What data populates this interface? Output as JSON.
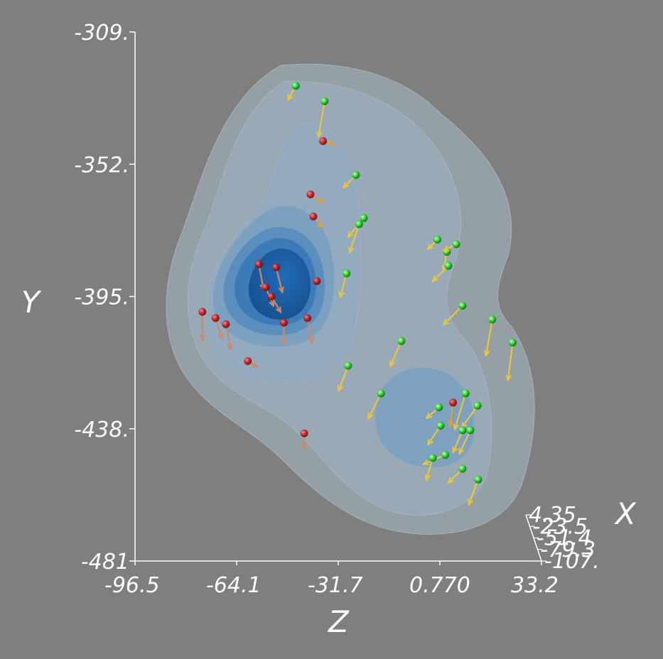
{
  "chart_data": {
    "type": "scatter",
    "subtype": "3d-isosurface-with-vector-glyphs",
    "title": "",
    "xlabel": "Z",
    "ylabel": "Y",
    "zlabel": "X",
    "x_axis": {
      "label": "Z",
      "range": [
        -96.5,
        33.2
      ],
      "ticks": [
        "-96.5",
        "-64.1",
        "-31.7",
        "0.770",
        "33.2"
      ]
    },
    "y_axis": {
      "label": "Y",
      "range": [
        -481,
        -309
      ],
      "ticks": [
        "-309.",
        "-352.",
        "-395.",
        "-438.",
        "-481"
      ]
    },
    "depth_axis": {
      "label": "X",
      "range": [
        -107,
        4.35
      ],
      "ticks": [
        "4.35",
        "-23.5",
        "-51.4",
        "-79.3",
        "-107."
      ]
    },
    "grid": false,
    "legend": "none",
    "isosurface_levels": 7,
    "colors": {
      "background": "#7f7f7f",
      "axes": "#ffffff",
      "isosurface_outer": "#9fb3c3",
      "isosurface_inner": "#1a5fa8",
      "point_high": "#33dd33",
      "point_low": "#cc1111"
    },
    "points": [
      {
        "z": -45.2,
        "y": -326.5,
        "dir": [
          -0.5,
          0.9
        ],
        "v": 0.75
      },
      {
        "z": -36.0,
        "y": -331.5,
        "dir": [
          -0.4,
          2.3
        ],
        "v": 0.85
      },
      {
        "z": -36.5,
        "y": -344.5,
        "dir": [
          0.8,
          0.2
        ],
        "v": 0.45
      },
      {
        "z": -40.5,
        "y": -361.8,
        "dir": [
          0.8,
          0.5
        ],
        "v": 0.35
      },
      {
        "z": -26.0,
        "y": -355.5,
        "dir": [
          -0.8,
          0.8
        ],
        "v": 0.6
      },
      {
        "z": -39.6,
        "y": -369.0,
        "dir": [
          0.6,
          0.7
        ],
        "v": 0.35
      },
      {
        "z": -23.5,
        "y": -369.5,
        "dir": [
          -1.0,
          1.2
        ],
        "v": 0.65
      },
      {
        "z": -25.0,
        "y": -371.5,
        "dir": [
          -0.6,
          1.8
        ],
        "v": 0.6
      },
      {
        "z": -38.5,
        "y": -390.0,
        "dir": [
          0.0,
          0.0
        ],
        "v": 0.3
      },
      {
        "z": -57.0,
        "y": -384.5,
        "dir": [
          0.3,
          1.6
        ],
        "v": 0.2
      },
      {
        "z": -51.5,
        "y": -385.5,
        "dir": [
          0.4,
          1.6
        ],
        "v": 0.25
      },
      {
        "z": -29.0,
        "y": -387.5,
        "dir": [
          -0.4,
          1.5
        ],
        "v": 0.7
      },
      {
        "z": -54.8,
        "y": -392.0,
        "dir": [
          0.5,
          1.2
        ],
        "v": 0.25
      },
      {
        "z": -53.0,
        "y": -395.0,
        "dir": [
          0.6,
          1.0
        ],
        "v": 0.3
      },
      {
        "z": -75.0,
        "y": -400.0,
        "dir": [
          0.0,
          1.8
        ],
        "v": 0.0
      },
      {
        "z": -70.8,
        "y": -402.0,
        "dir": [
          0.4,
          1.3
        ],
        "v": 0.1
      },
      {
        "z": -67.5,
        "y": -404.0,
        "dir": [
          0.3,
          1.6
        ],
        "v": 0.1
      },
      {
        "z": -49.0,
        "y": -403.5,
        "dir": [
          0.0,
          1.4
        ],
        "v": 0.3
      },
      {
        "z": -41.5,
        "y": -402.0,
        "dir": [
          0.3,
          1.6
        ],
        "v": 0.3
      },
      {
        "z": -60.5,
        "y": -416.0,
        "dir": [
          0.6,
          0.4
        ],
        "v": 0.15
      },
      {
        "z": -28.5,
        "y": -417.5,
        "dir": [
          -0.6,
          1.6
        ],
        "v": 0.75
      },
      {
        "z": -11.5,
        "y": -409.5,
        "dir": [
          -0.7,
          1.6
        ],
        "v": 0.65
      },
      {
        "z": 3.0,
        "y": -380.5,
        "dir": [
          -0.2,
          1.2
        ],
        "v": 0.75
      },
      {
        "z": 0.0,
        "y": -376.5,
        "dir": [
          -0.6,
          0.6
        ],
        "v": 0.8
      },
      {
        "z": 6.0,
        "y": -378.0,
        "dir": [
          -0.8,
          0.4
        ],
        "v": 0.8
      },
      {
        "z": 3.5,
        "y": -385.0,
        "dir": [
          -1.0,
          1.0
        ],
        "v": 0.9
      },
      {
        "z": 8.0,
        "y": -398.0,
        "dir": [
          -1.2,
          1.2
        ],
        "v": 0.75
      },
      {
        "z": 17.5,
        "y": -402.5,
        "dir": [
          -0.4,
          2.3
        ],
        "v": 0.85
      },
      {
        "z": 24.0,
        "y": -410.0,
        "dir": [
          -0.3,
          2.4
        ],
        "v": 0.9
      },
      {
        "z": -18.0,
        "y": -426.5,
        "dir": [
          -0.8,
          1.6
        ],
        "v": 0.7
      },
      {
        "z": 0.5,
        "y": -431.0,
        "dir": [
          -0.8,
          0.7
        ],
        "v": 0.7
      },
      {
        "z": 9.0,
        "y": -426.5,
        "dir": [
          -0.7,
          2.3
        ],
        "v": 0.75
      },
      {
        "z": 12.8,
        "y": -430.5,
        "dir": [
          -1.0,
          1.4
        ],
        "v": 0.85
      },
      {
        "z": 5.0,
        "y": -429.5,
        "dir": [
          -0.2,
          1.5
        ],
        "v": 0.4
      },
      {
        "z": 1.0,
        "y": -437.0,
        "dir": [
          -0.8,
          1.2
        ],
        "v": 0.7
      },
      {
        "z": 8.0,
        "y": -438.5,
        "dir": [
          -0.6,
          1.4
        ],
        "v": 0.75
      },
      {
        "z": 10.5,
        "y": -438.5,
        "dir": [
          -0.7,
          1.5
        ],
        "v": 0.7
      },
      {
        "z": 2.5,
        "y": -446.5,
        "dir": [
          -1.4,
          0.6
        ],
        "v": 0.8
      },
      {
        "z": -1.5,
        "y": -447.5,
        "dir": [
          -0.4,
          1.4
        ],
        "v": 0.7
      },
      {
        "z": 8.0,
        "y": -451.0,
        "dir": [
          -0.9,
          0.9
        ],
        "v": 0.7
      },
      {
        "z": 13.0,
        "y": -454.5,
        "dir": [
          -0.6,
          1.6
        ],
        "v": 0.9
      },
      {
        "z": -42.5,
        "y": -439.5,
        "dir": [
          0.0,
          0.9
        ],
        "v": 0.0
      }
    ]
  }
}
